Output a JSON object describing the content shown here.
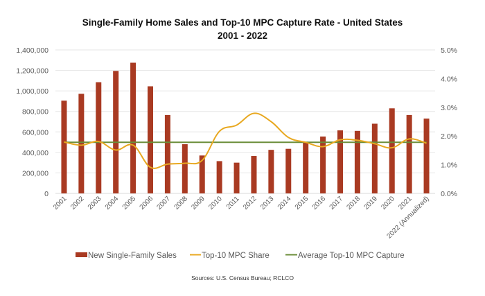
{
  "chart_data": {
    "type": "bar",
    "title": "Single-Family Home Sales and Top-10 MPC Capture Rate - United States",
    "subtitle": "2001 - 2022",
    "categories": [
      "2001",
      "2002",
      "2003",
      "2004",
      "2005",
      "2006",
      "2007",
      "2008",
      "2009",
      "2010",
      "2011",
      "2012",
      "2013",
      "2014",
      "2015",
      "2016",
      "2017",
      "2018",
      "2019",
      "2020",
      "2021",
      "2022 (Annualized)"
    ],
    "series": [
      {
        "name": "New Single-Family Sales",
        "type": "bar",
        "axis": "left",
        "color": "#A93A22",
        "values": [
          905000,
          972000,
          1085000,
          1195000,
          1275000,
          1045000,
          765000,
          480000,
          370000,
          315000,
          300000,
          365000,
          425000,
          435000,
          495000,
          555000,
          615000,
          610000,
          680000,
          830000,
          765000,
          730000
        ]
      },
      {
        "name": "Top-10 MPC Share",
        "type": "line",
        "axis": "right",
        "color": "#E8A820",
        "values": [
          1.79,
          1.68,
          1.81,
          1.51,
          1.68,
          0.91,
          1.02,
          1.05,
          1.15,
          2.16,
          2.38,
          2.79,
          2.5,
          1.95,
          1.78,
          1.63,
          1.87,
          1.85,
          1.73,
          1.59,
          1.9,
          1.75
        ]
      },
      {
        "name": "Average Top-10 MPC Capture",
        "type": "line",
        "axis": "right",
        "color": "#6B8E3A",
        "values": [
          1.78,
          1.78,
          1.78,
          1.78,
          1.78,
          1.78,
          1.78,
          1.78,
          1.78,
          1.78,
          1.78,
          1.78,
          1.78,
          1.78,
          1.78,
          1.78,
          1.78,
          1.78,
          1.78,
          1.78,
          1.78,
          1.78
        ]
      }
    ],
    "y_left": {
      "ylim": [
        0,
        1400000
      ],
      "ticks": [
        "0",
        "200,000",
        "400,000",
        "600,000",
        "800,000",
        "1,000,000",
        "1,200,000",
        "1,400,000"
      ]
    },
    "y_right": {
      "ylim": [
        0,
        5
      ],
      "ticks": [
        "0.0%",
        "1.0%",
        "2.0%",
        "3.0%",
        "4.0%",
        "5.0%"
      ]
    },
    "xlabel": "",
    "ylabel": "",
    "grid": true,
    "legend": {
      "position": "bottom",
      "entries": [
        "New Single-Family Sales",
        "Top-10 MPC Share",
        "Average Top-10 MPC Capture"
      ]
    },
    "source": "Sources: U.S. Census Bureau; RCLCO"
  }
}
